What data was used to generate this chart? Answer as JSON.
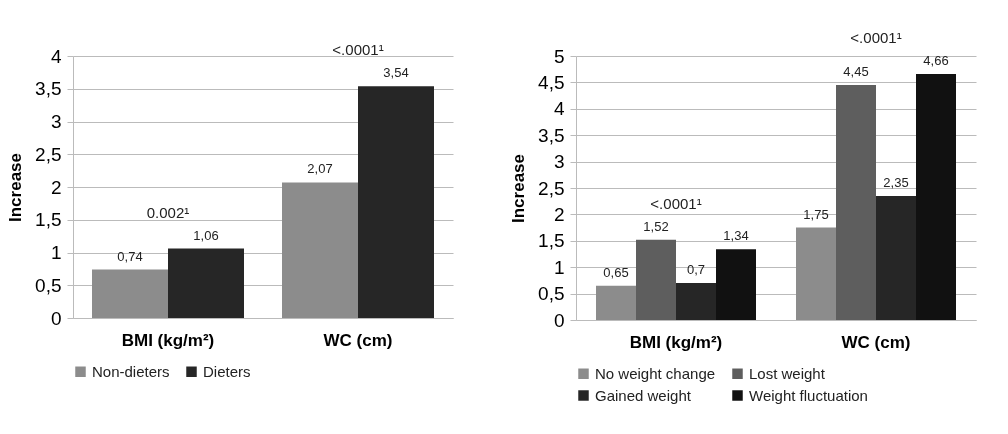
{
  "chart_data": [
    {
      "type": "bar",
      "categories": [
        "BMI (kg/m²)",
        "WC (cm)"
      ],
      "ylabel": "Increase",
      "series": [
        {
          "name": "Non-dieters",
          "color": "#8c8c8c",
          "values": [
            0.74,
            2.07
          ],
          "value_labels": [
            "0,74",
            "2,07"
          ]
        },
        {
          "name": "Dieters",
          "color": "#262626",
          "values": [
            1.06,
            3.54
          ],
          "value_labels": [
            "1,06",
            "3,54"
          ]
        }
      ],
      "ylim": [
        0,
        4
      ],
      "yticks": [
        0,
        {
          "value": 0.5,
          "label": "0,5"
        },
        1,
        {
          "value": 1.5,
          "label": "1,5"
        },
        2,
        {
          "value": 2.5,
          "label": "2,5"
        },
        3,
        {
          "value": 3.5,
          "label": "3,5"
        },
        4
      ],
      "grid": "y",
      "legend": "bottom",
      "annotations": [
        "0.002¹",
        "<.0001¹"
      ]
    },
    {
      "type": "bar",
      "categories": [
        "BMI (kg/m²)",
        "WC (cm)"
      ],
      "ylabel": "Increase",
      "series": [
        {
          "name": "No weight change",
          "color": "#8c8c8c",
          "values": [
            0.65,
            1.75
          ],
          "value_labels": [
            "0,65",
            "1,75"
          ]
        },
        {
          "name": "Lost weight",
          "color": "#5e5e5e",
          "values": [
            1.52,
            4.45
          ],
          "value_labels": [
            "1,52",
            "4,45"
          ]
        },
        {
          "name": "Gained weight",
          "color": "#262626",
          "values": [
            0.7,
            2.35
          ],
          "value_labels": [
            "0,7",
            "2,35"
          ]
        },
        {
          "name": "Weight fluctuation",
          "color": "#111111",
          "values": [
            1.34,
            4.66
          ],
          "value_labels": [
            "1,34",
            "4,66"
          ]
        }
      ],
      "ylim": [
        0,
        5
      ],
      "yticks": [
        0,
        {
          "value": 0.5,
          "label": "0,5"
        },
        1,
        {
          "value": 1.5,
          "label": "1,5"
        },
        2,
        {
          "value": 2.5,
          "label": "2,5"
        },
        3,
        {
          "value": 3.5,
          "label": "3,5"
        },
        4,
        {
          "value": 4.5,
          "label": "4,5"
        },
        5
      ],
      "grid": "y",
      "legend": "bottom",
      "annotations": [
        "<.0001¹",
        "<.0001¹"
      ]
    }
  ]
}
